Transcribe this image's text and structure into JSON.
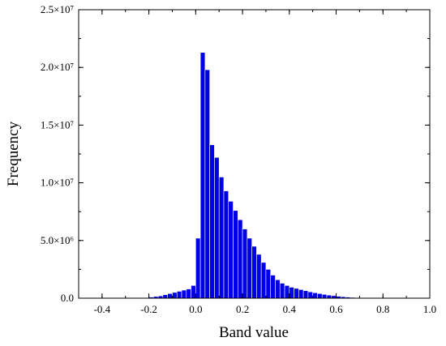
{
  "chart_data": {
    "type": "bar",
    "xlabel": "Band value",
    "ylabel": "Frequency",
    "xlim": [
      -0.5,
      1.0
    ],
    "ylim": [
      0,
      25000000
    ],
    "x_ticks": [
      -0.4,
      -0.2,
      0.0,
      0.2,
      0.4,
      0.6,
      0.8,
      1.0
    ],
    "x_tick_labels": [
      "-0.4",
      "-0.2",
      "0.0",
      "0.2",
      "0.4",
      "0.6",
      "0.8",
      "1.0"
    ],
    "y_ticks": [
      0,
      5000000,
      10000000,
      15000000,
      20000000,
      25000000
    ],
    "y_tick_labels": [
      "0.0",
      "5.0×10⁶",
      "1.0×10⁷",
      "1.5×10⁷",
      "2.0×10⁷",
      "2.5×10⁷"
    ],
    "bar_color": "#0000e6",
    "bin_width": 0.02,
    "grid": false,
    "bins": [
      -0.2,
      -0.18,
      -0.16,
      -0.14,
      -0.12,
      -0.1,
      -0.08,
      -0.06,
      -0.04,
      -0.02,
      0.0,
      0.02,
      0.04,
      0.06,
      0.08,
      0.1,
      0.12,
      0.14,
      0.16,
      0.18,
      0.2,
      0.22,
      0.24,
      0.26,
      0.28,
      0.3,
      0.32,
      0.34,
      0.36,
      0.38,
      0.4,
      0.42,
      0.44,
      0.46,
      0.48,
      0.5,
      0.52,
      0.54,
      0.56,
      0.58,
      0.6,
      0.62,
      0.64,
      0.66,
      0.68
    ],
    "values": [
      100000,
      150000,
      200000,
      300000,
      400000,
      500000,
      600000,
      700000,
      800000,
      1100000,
      5200000,
      21300000,
      19800000,
      13300000,
      12200000,
      10500000,
      9300000,
      8400000,
      7600000,
      6800000,
      6000000,
      5200000,
      4500000,
      3800000,
      3100000,
      2500000,
      2000000,
      1600000,
      1300000,
      1100000,
      950000,
      850000,
      750000,
      650000,
      550000,
      470000,
      400000,
      330000,
      270000,
      220000,
      170000,
      130000,
      100000,
      70000,
      40000
    ]
  }
}
